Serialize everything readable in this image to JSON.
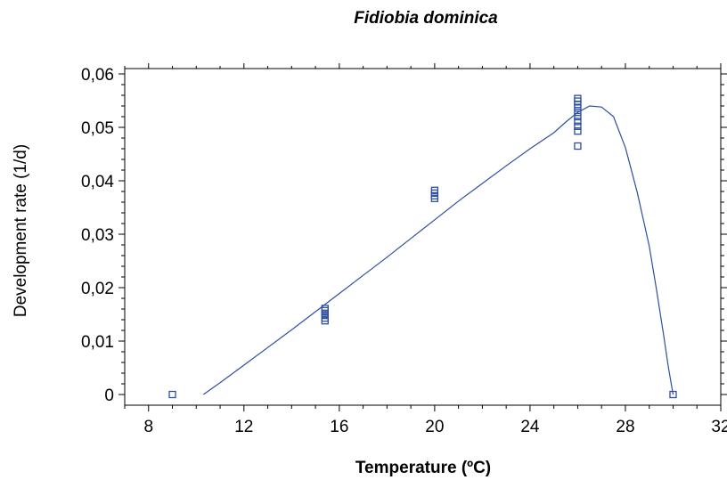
{
  "chart_data": {
    "type": "scatter",
    "title": "Fidiobia dominica",
    "xlabel": "Temperature (ºC)",
    "ylabel": "Development rate (1/d)",
    "xlim": [
      7,
      32
    ],
    "ylim": [
      -0.002,
      0.061
    ],
    "x_ticks": [
      8,
      12,
      16,
      20,
      24,
      28,
      32
    ],
    "x_tick_labels": [
      "8",
      "12",
      "16",
      "20",
      "24",
      "28",
      "32"
    ],
    "y_ticks": [
      0,
      0.01,
      0.02,
      0.03,
      0.04,
      0.05,
      0.06
    ],
    "y_tick_labels": [
      "0",
      "0,01",
      "0,02",
      "0,03",
      "0,04",
      "0,05",
      "0,06"
    ],
    "grid": false,
    "legend": false,
    "colors": {
      "series": "#2e4fa0",
      "axes": "#000000"
    },
    "points": [
      {
        "x": 9,
        "y": 0.0
      },
      {
        "x": 15.4,
        "y": 0.0138
      },
      {
        "x": 15.4,
        "y": 0.0143
      },
      {
        "x": 15.4,
        "y": 0.0148
      },
      {
        "x": 15.4,
        "y": 0.0152
      },
      {
        "x": 15.4,
        "y": 0.0157
      },
      {
        "x": 15.4,
        "y": 0.0161
      },
      {
        "x": 20,
        "y": 0.0367
      },
      {
        "x": 20,
        "y": 0.0372
      },
      {
        "x": 20,
        "y": 0.0377
      },
      {
        "x": 20,
        "y": 0.0382
      },
      {
        "x": 26,
        "y": 0.0465
      },
      {
        "x": 26,
        "y": 0.0493
      },
      {
        "x": 26,
        "y": 0.0502
      },
      {
        "x": 26,
        "y": 0.0511
      },
      {
        "x": 26,
        "y": 0.052
      },
      {
        "x": 26,
        "y": 0.0528
      },
      {
        "x": 26,
        "y": 0.0536
      },
      {
        "x": 26,
        "y": 0.0543
      },
      {
        "x": 26,
        "y": 0.0549
      },
      {
        "x": 26,
        "y": 0.0554
      },
      {
        "x": 30,
        "y": 0.0
      }
    ],
    "fit_curve": {
      "x": [
        10.3,
        11,
        12,
        13,
        14,
        15,
        16,
        17,
        18,
        19,
        20,
        21,
        22,
        23,
        24,
        25,
        25.5,
        26,
        26.5,
        27,
        27.5,
        28,
        28.5,
        29,
        29.3,
        29.6,
        29.8,
        30
      ],
      "y": [
        0.0,
        0.0022,
        0.0055,
        0.0088,
        0.0121,
        0.0155,
        0.0189,
        0.0223,
        0.0257,
        0.0292,
        0.0327,
        0.0362,
        0.0395,
        0.0428,
        0.046,
        0.049,
        0.051,
        0.0528,
        0.054,
        0.0538,
        0.052,
        0.0462,
        0.0378,
        0.0278,
        0.0198,
        0.0112,
        0.0052,
        0.0
      ]
    }
  }
}
